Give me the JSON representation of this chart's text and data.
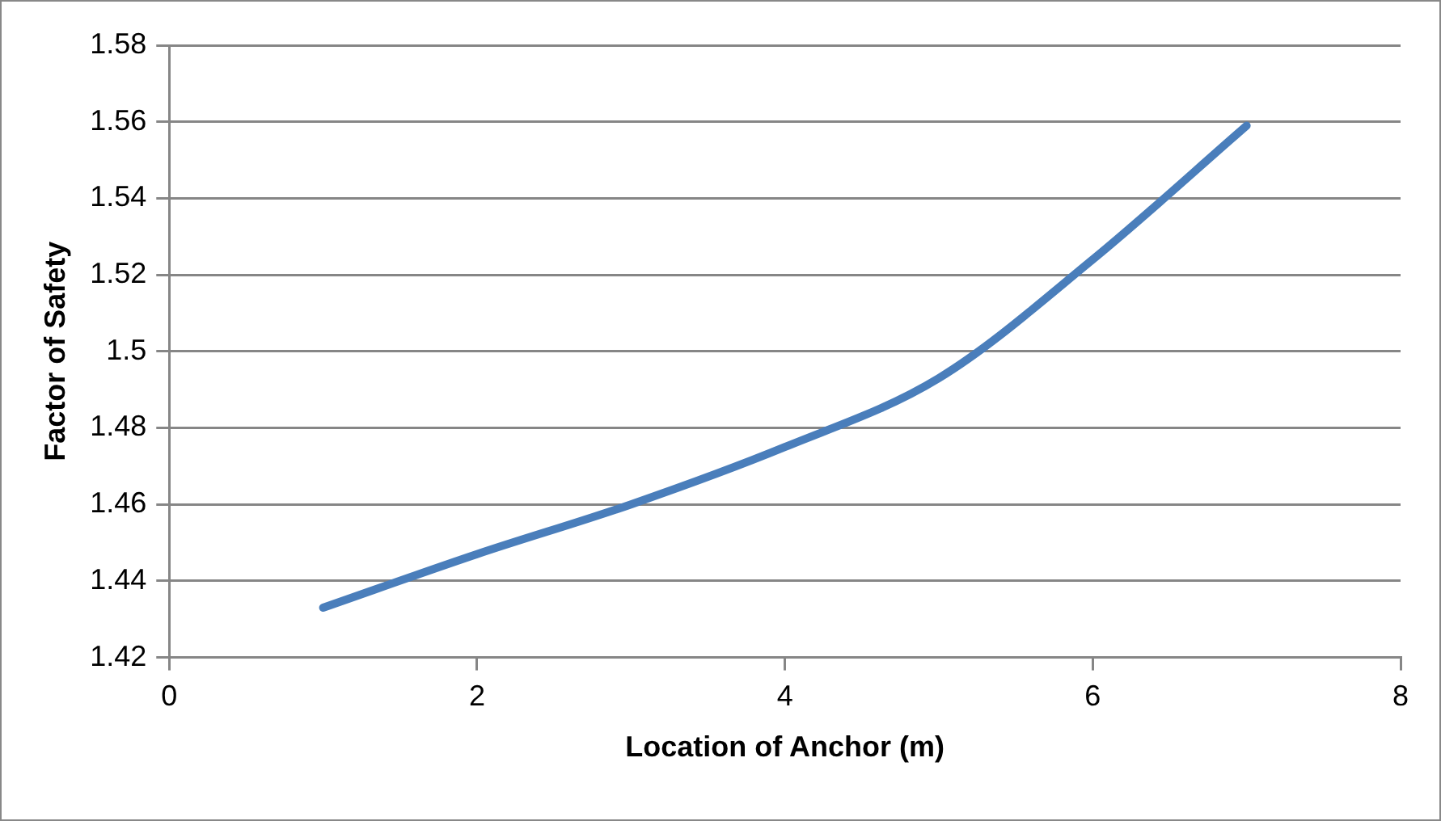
{
  "chart_data": {
    "type": "line",
    "xlabel": "Location of Anchor (m)",
    "ylabel": "Factor of Safety",
    "x": [
      1,
      2,
      3,
      4,
      5,
      6,
      7
    ],
    "series": [
      {
        "color": "#4a7ebb",
        "values": [
          1.433,
          1.447,
          1.46,
          1.475,
          1.493,
          1.524,
          1.559
        ]
      }
    ],
    "xlim": [
      0,
      8
    ],
    "xticks": [
      0,
      2,
      4,
      6,
      8
    ],
    "ylim": [
      1.42,
      1.58
    ],
    "yticks": [
      1.42,
      1.44,
      1.46,
      1.48,
      1.5,
      1.52,
      1.54,
      1.56,
      1.58
    ],
    "grid": "y",
    "legend": false,
    "marker": "none",
    "line_style": "solid"
  }
}
